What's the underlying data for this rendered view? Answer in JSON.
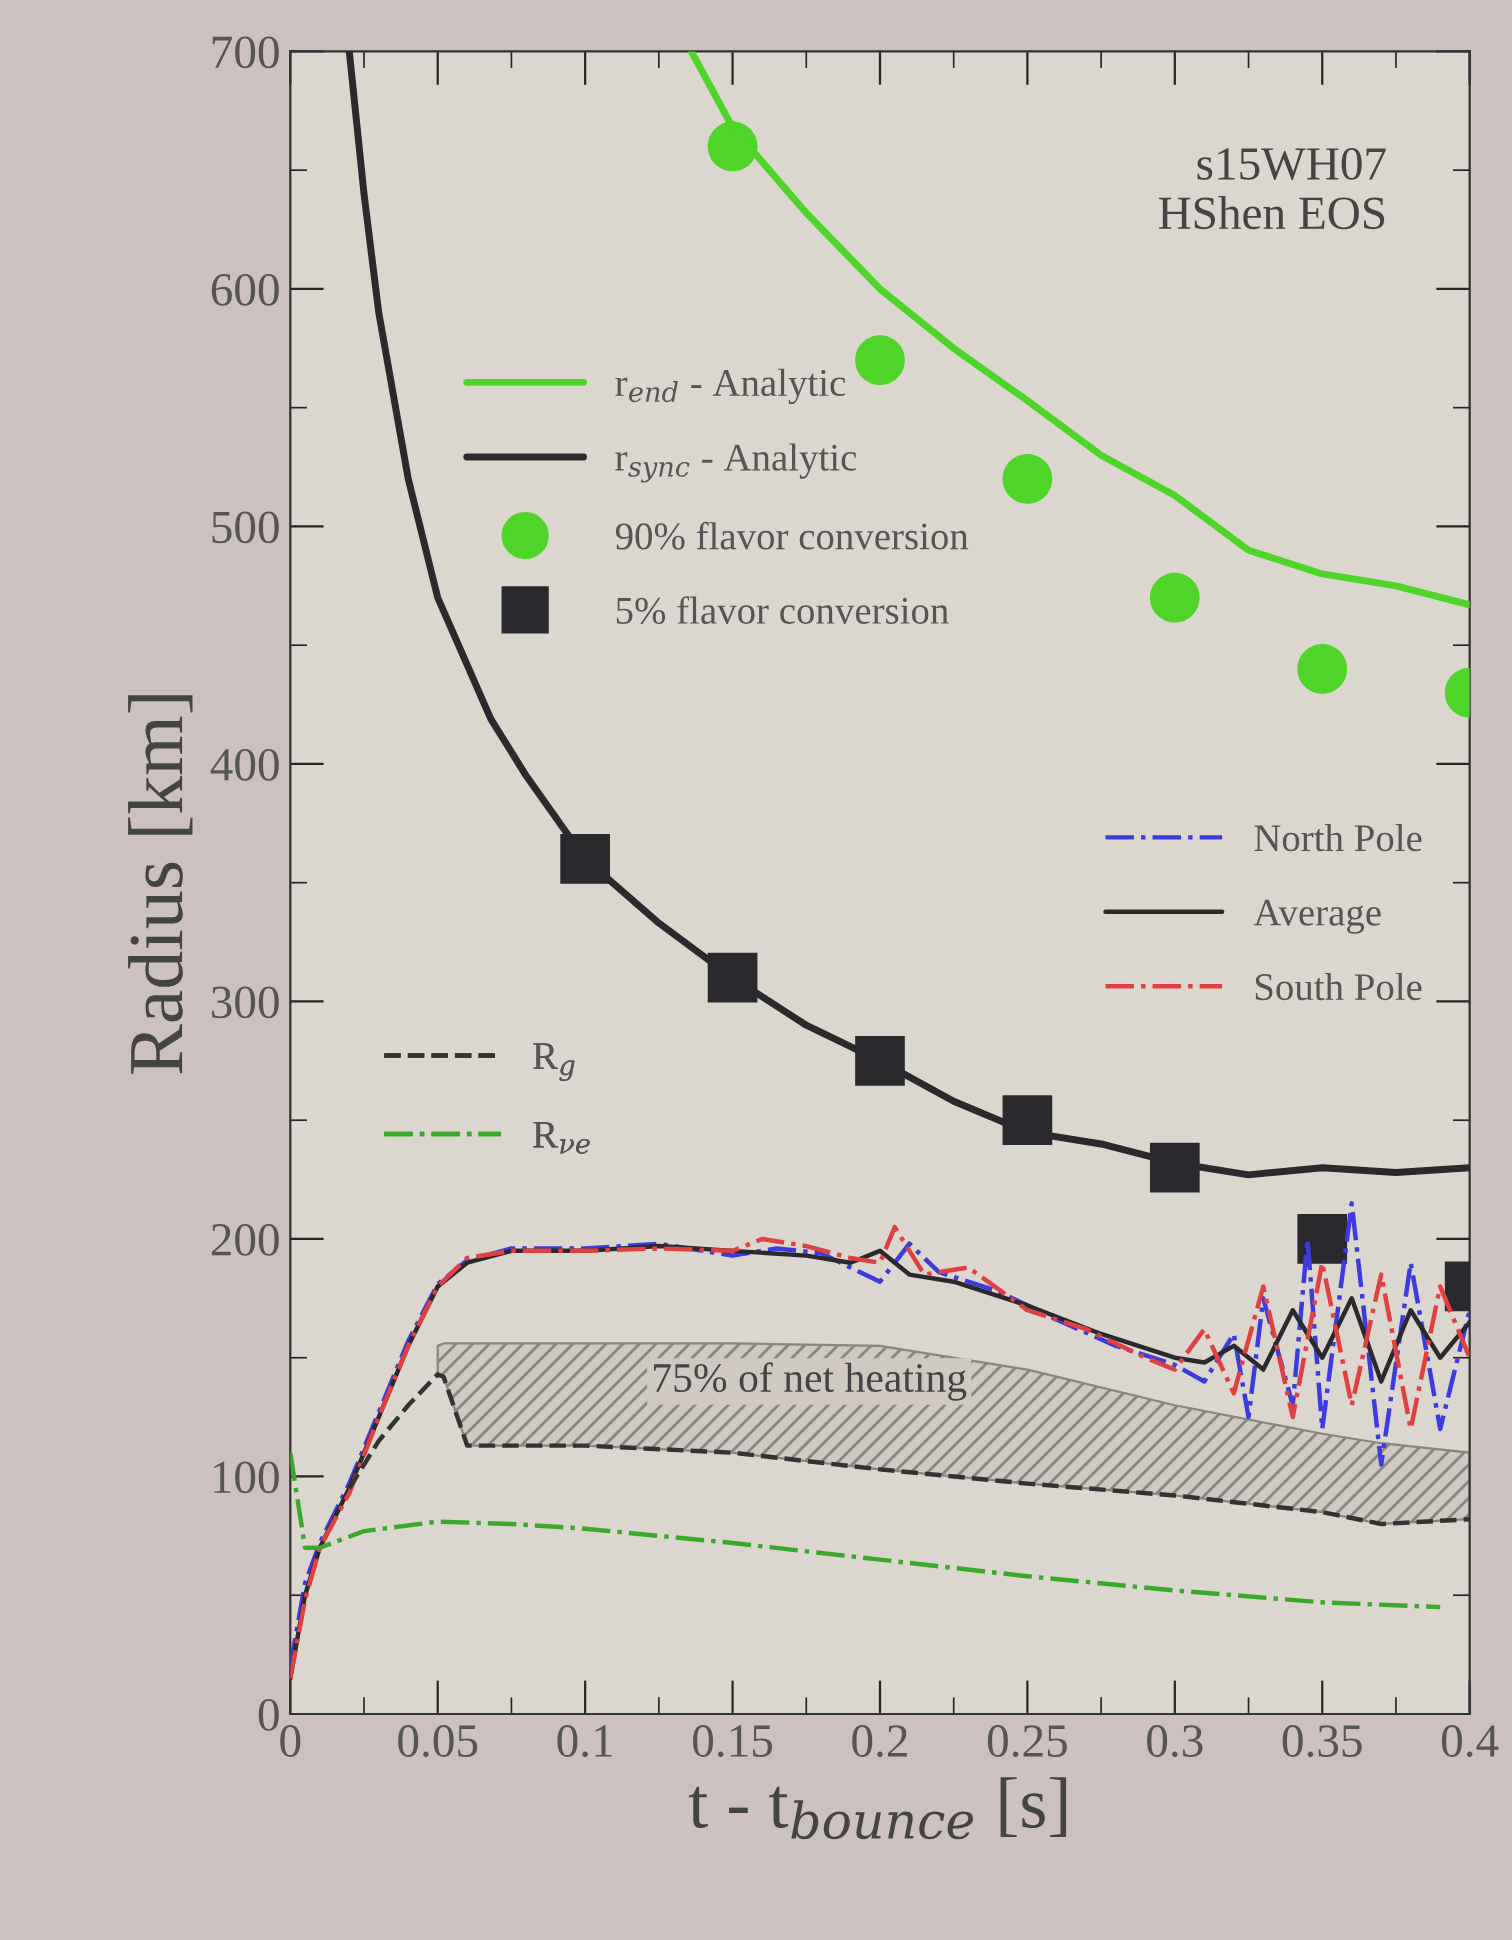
{
  "chart_data": {
    "type": "line",
    "xlabel": "t - t$_{bounce}$ [s]",
    "ylabel": "Radius [km]",
    "xlim": [
      0,
      0.4
    ],
    "ylim": [
      0,
      700
    ],
    "xticks": [
      0,
      0.05,
      0.1,
      0.15,
      0.2,
      0.25,
      0.3,
      0.35,
      0.4
    ],
    "yticks": [
      0,
      100,
      200,
      300,
      400,
      500,
      600,
      700
    ],
    "grid": false,
    "legend": "left",
    "annotations": [
      "s15WH07\nHShen EOS",
      "75% of net heating"
    ],
    "series": [
      {
        "name": "r$_{end}$ - Analytic",
        "type": "line",
        "line_style": "solid",
        "color": "#4fd42a",
        "x": [
          0.136,
          0.15,
          0.175,
          0.2,
          0.225,
          0.25,
          0.275,
          0.3,
          0.325,
          0.35,
          0.375,
          0.4
        ],
        "values": [
          700,
          668,
          632,
          600,
          575,
          553,
          530,
          513,
          490,
          480,
          475,
          467
        ]
      },
      {
        "name": "r$_{sync}$ - Analytic",
        "type": "line",
        "line_style": "solid",
        "color": "#2a2a2e",
        "x": [
          0.02,
          0.025,
          0.03,
          0.04,
          0.05,
          0.068,
          0.08,
          0.1,
          0.125,
          0.15,
          0.175,
          0.2,
          0.225,
          0.25,
          0.275,
          0.3,
          0.325,
          0.35,
          0.375,
          0.4
        ],
        "values": [
          700,
          640,
          590,
          520,
          470,
          419,
          395,
          360,
          333,
          310,
          290,
          275,
          258,
          245,
          240,
          232,
          227,
          230,
          228,
          230
        ]
      },
      {
        "name": "90% flavor conversion",
        "type": "scatter",
        "marker": "circle",
        "color": "#4fd42a",
        "x": [
          0.15,
          0.2,
          0.25,
          0.3,
          0.35,
          0.4
        ],
        "values": [
          660,
          570,
          520,
          470,
          440,
          430
        ]
      },
      {
        "name": "5% flavor conversion",
        "type": "scatter",
        "marker": "square",
        "color": "#2a2a2e",
        "x": [
          0.1,
          0.15,
          0.2,
          0.25,
          0.3,
          0.35,
          0.4
        ],
        "values": [
          360,
          310,
          275,
          250,
          230,
          200,
          180
        ]
      },
      {
        "name": "North Pole",
        "type": "line",
        "line_style": "dashdot",
        "color": "#3b3be0",
        "x": [
          0,
          0.005,
          0.01,
          0.02,
          0.03,
          0.04,
          0.05,
          0.06,
          0.075,
          0.1,
          0.125,
          0.15,
          0.165,
          0.18,
          0.19,
          0.2,
          0.21,
          0.22,
          0.24,
          0.26,
          0.28,
          0.3,
          0.31,
          0.32,
          0.325,
          0.33,
          0.34,
          0.345,
          0.35,
          0.36,
          0.37,
          0.38,
          0.39,
          0.4
        ],
        "values": [
          20,
          55,
          72,
          97,
          127,
          157,
          181,
          191,
          196,
          196,
          198,
          193,
          196,
          194,
          188,
          182,
          198,
          186,
          178,
          166,
          155,
          147,
          140,
          160,
          125,
          175,
          130,
          200,
          120,
          215,
          105,
          190,
          120,
          170
        ]
      },
      {
        "name": "Average",
        "line_style": "solid",
        "color": "#2a2a2e",
        "x": [
          0,
          0.005,
          0.01,
          0.02,
          0.03,
          0.04,
          0.05,
          0.06,
          0.075,
          0.1,
          0.125,
          0.15,
          0.175,
          0.19,
          0.2,
          0.21,
          0.225,
          0.25,
          0.275,
          0.3,
          0.31,
          0.32,
          0.33,
          0.34,
          0.35,
          0.36,
          0.37,
          0.38,
          0.39,
          0.4
        ],
        "values": [
          15,
          50,
          70,
          95,
          125,
          155,
          180,
          190,
          195,
          195,
          197,
          195,
          193,
          190,
          195,
          185,
          182,
          172,
          160,
          150,
          148,
          155,
          145,
          170,
          150,
          175,
          140,
          170,
          150,
          165
        ]
      },
      {
        "name": "South Pole",
        "type": "line",
        "line_style": "dashdot",
        "color": "#e04040",
        "x": [
          0,
          0.005,
          0.01,
          0.02,
          0.03,
          0.04,
          0.05,
          0.06,
          0.075,
          0.1,
          0.125,
          0.15,
          0.16,
          0.175,
          0.19,
          0.2,
          0.205,
          0.215,
          0.23,
          0.25,
          0.27,
          0.29,
          0.3,
          0.31,
          0.32,
          0.33,
          0.34,
          0.35,
          0.36,
          0.37,
          0.38,
          0.39,
          0.4
        ],
        "values": [
          15,
          48,
          70,
          93,
          125,
          155,
          180,
          192,
          195,
          195,
          196,
          195,
          200,
          197,
          192,
          190,
          205,
          185,
          188,
          170,
          162,
          150,
          145,
          162,
          135,
          180,
          125,
          190,
          130,
          185,
          120,
          180,
          150
        ]
      },
      {
        "name": "R$_{g}$",
        "type": "line",
        "line_style": "dashed",
        "color": "#333333",
        "x": [
          0.02,
          0.03,
          0.04,
          0.05,
          0.052,
          0.06,
          0.1,
          0.15,
          0.2,
          0.25,
          0.3,
          0.35,
          0.37,
          0.4
        ],
        "values": [
          95,
          115,
          130,
          143,
          142,
          113,
          113,
          110,
          103,
          97,
          92,
          85,
          80,
          82
        ],
        "lower": [
          null,
          null,
          null,
          143,
          142,
          113,
          113,
          110,
          103,
          97,
          92,
          85,
          80,
          82
        ],
        "upper": [
          null,
          null,
          null,
          155,
          156,
          156,
          156,
          156,
          155,
          145,
          130,
          118,
          114,
          110
        ]
      },
      {
        "name": "R$_{νe}$",
        "line_style": "dashdot",
        "color": "#3aa82a",
        "x": [
          0,
          0.005,
          0.01,
          0.025,
          0.05,
          0.075,
          0.1,
          0.15,
          0.2,
          0.25,
          0.3,
          0.35,
          0.39
        ],
        "values": [
          110,
          70,
          70,
          77,
          81,
          80,
          78,
          72,
          65,
          58,
          52,
          47,
          45
        ]
      }
    ]
  }
}
